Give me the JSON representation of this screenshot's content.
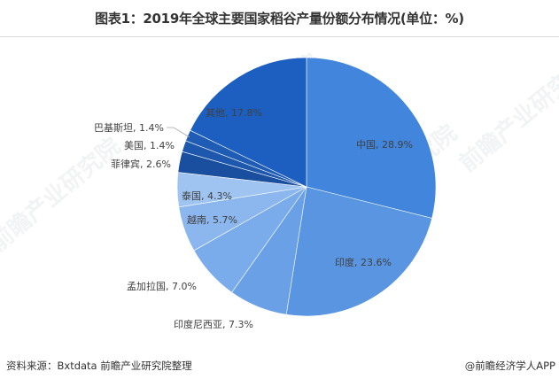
{
  "title": "图表1：2019年全球主要国家稻谷产量份额分布情况(单位：%)",
  "footer": {
    "source": "资料来源：Bxtdata 前瞻产业研究院整理",
    "credit": "@前瞻经济学人APP"
  },
  "watermark": {
    "text": "前瞻产业研究院"
  },
  "chart_data": {
    "type": "pie",
    "title": "图表1：2019年全球主要国家稻谷产量份额分布情况(单位：%)",
    "unit": "%",
    "start_angle": "12 o'clock, clockwise",
    "categories": [
      "中国",
      "印度",
      "印度尼西亚",
      "孟加拉国",
      "越南",
      "泰国",
      "菲律宾",
      "美国",
      "巴基斯坦",
      "其他"
    ],
    "values": [
      28.9,
      23.6,
      7.3,
      7.0,
      5.7,
      4.3,
      2.6,
      1.4,
      1.4,
      17.8
    ],
    "labels": [
      "中国, 28.9%",
      "印度, 23.6%",
      "印度尼西亚, 7.3%",
      "孟加拉国, 7.0%",
      "越南, 5.7%",
      "泰国, 4.3%",
      "菲律宾, 2.6%",
      "美国, 1.4%",
      "巴基斯坦, 1.4%",
      "其他, 17.8%"
    ],
    "colors": [
      "#4185dc",
      "#5a95e2",
      "#6aa0e6",
      "#7aabea",
      "#8bb7ee",
      "#a0c4f1",
      "#1a4fa0",
      "#1d57ae",
      "#1f5cb6",
      "#1c5fc0"
    ],
    "legend": "none (inline data labels)"
  }
}
